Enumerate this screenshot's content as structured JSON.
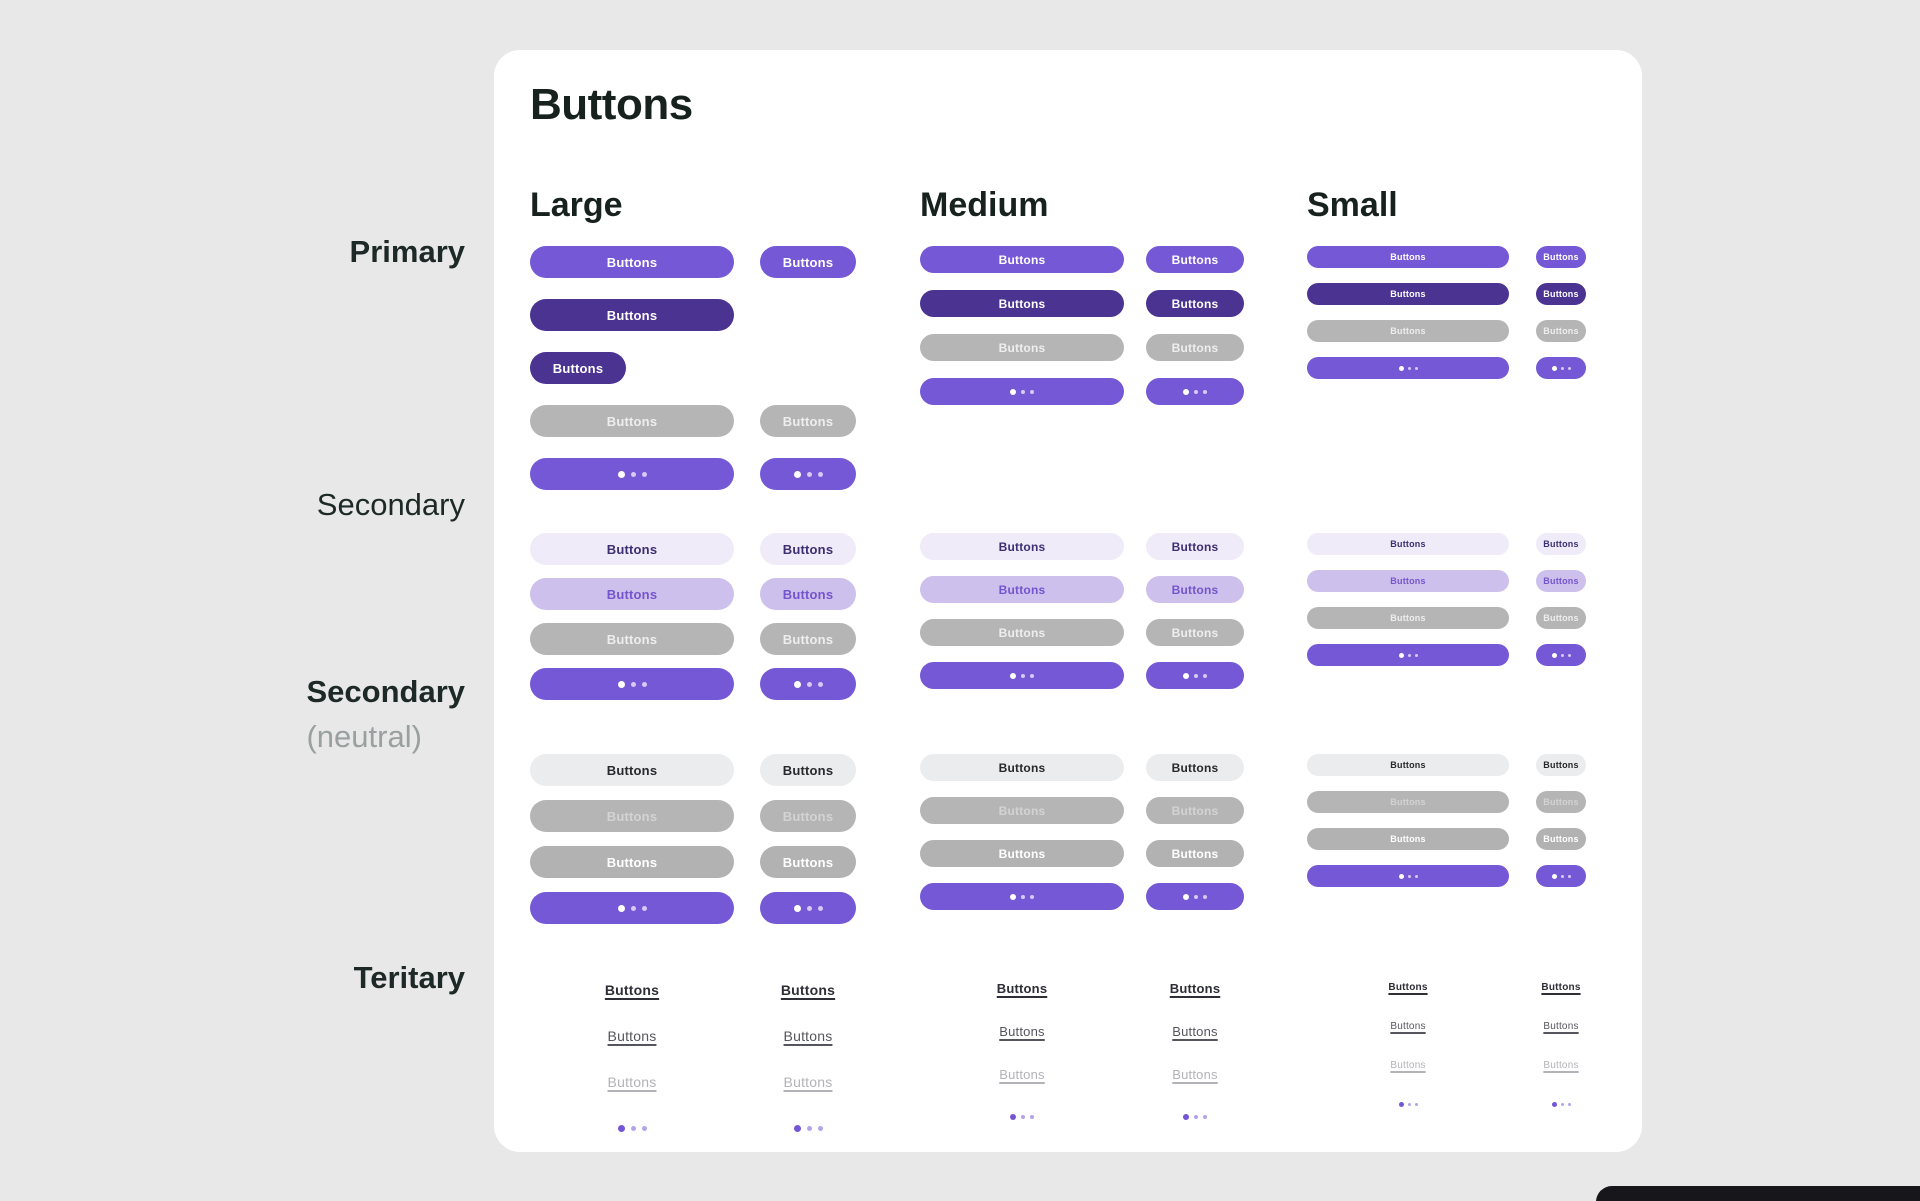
{
  "page": {
    "background": "#e8e8e8",
    "card_background": "#ffffff",
    "label_color": "#1d2926",
    "muted_label_color": "#9aa0a0",
    "edge_panel_color": "#17171b"
  },
  "title": "Buttons",
  "button_label": "Buttons",
  "size_columns": [
    {
      "id": "large",
      "heading": "Large"
    },
    {
      "id": "medium",
      "heading": "Medium"
    },
    {
      "id": "small",
      "heading": "Small"
    }
  ],
  "row_groups": [
    {
      "id": "primary",
      "label": "Primary",
      "sublabel": ""
    },
    {
      "id": "secondary",
      "label": "Secondary",
      "sublabel": ""
    },
    {
      "id": "secondary_neutral",
      "label": "Secondary",
      "sublabel": "(neutral)"
    },
    {
      "id": "tertiary",
      "label": "Teritary",
      "sublabel": ""
    }
  ],
  "variants": {
    "primary": {
      "bg": "#7558d6",
      "fg": "#ffffff"
    },
    "primary_active": {
      "bg": "#4b3392",
      "fg": "#ffffff"
    },
    "disabled": {
      "bg": "#b5b5b5",
      "fg": "#eeeeee"
    },
    "loading": {
      "bg": "#7558d6",
      "dots": [
        "#ffffff",
        "#d5caf4",
        "#d5caf4"
      ]
    },
    "secondary": {
      "bg": "#efebf8",
      "fg": "#3d2f73"
    },
    "secondary_pressed": {
      "bg": "#cec0ed",
      "fg": "#7355cd"
    },
    "neutral": {
      "bg": "#ebecee",
      "fg": "#28282d",
      "textured": true
    },
    "neutral_disabled": {
      "bg": "#b5b5b5",
      "fg": "#d3d3d3"
    },
    "neutral_hover": {
      "bg": "#b2b2b2",
      "fg": "#ffffff"
    },
    "tertiary": {
      "fg": "#2e2e36",
      "link": true,
      "underline": true,
      "weight": 700
    },
    "tertiary_hover": {
      "fg": "#55555e",
      "link": true,
      "underline": true,
      "weight": 500
    },
    "tertiary_disabled": {
      "fg": "#b2b2b8",
      "link": true,
      "underline": true,
      "weight": 500
    },
    "tertiary_loading": {
      "link": true,
      "dots": [
        "#7456d4",
        "#b3a3ea",
        "#b3a3ea"
      ]
    }
  },
  "matrix": {
    "primary": {
      "large": [
        {
          "wide": "primary",
          "narrow": "primary"
        },
        {
          "wide": "primary_active",
          "narrow": null
        },
        {
          "wide": "primary_active",
          "narrow": null,
          "compact": true
        },
        {
          "wide": "disabled",
          "narrow": "disabled"
        },
        {
          "wide": "loading",
          "narrow": "loading"
        }
      ],
      "medium": [
        {
          "wide": "primary",
          "narrow": "primary"
        },
        {
          "wide": "primary_active",
          "narrow": "primary_active"
        },
        {
          "wide": "disabled",
          "narrow": "disabled"
        },
        {
          "wide": "loading",
          "narrow": "loading"
        }
      ],
      "small": [
        {
          "wide": "primary",
          "narrow": "primary"
        },
        {
          "wide": "primary_active",
          "narrow": "primary_active"
        },
        {
          "wide": "disabled",
          "narrow": "disabled"
        },
        {
          "wide": "loading",
          "narrow": "loading"
        }
      ]
    },
    "secondary": {
      "large": [
        {
          "wide": "secondary",
          "narrow": "secondary"
        },
        {
          "wide": "secondary_pressed",
          "narrow": "secondary_pressed"
        },
        {
          "wide": "disabled",
          "narrow": "disabled"
        },
        {
          "wide": "loading",
          "narrow": "loading"
        }
      ],
      "medium": [
        {
          "wide": "secondary",
          "narrow": "secondary"
        },
        {
          "wide": "secondary_pressed",
          "narrow": "secondary_pressed"
        },
        {
          "wide": "disabled",
          "narrow": "disabled"
        },
        {
          "wide": "loading",
          "narrow": "loading"
        }
      ],
      "small": [
        {
          "wide": "secondary",
          "narrow": "secondary"
        },
        {
          "wide": "secondary_pressed",
          "narrow": "secondary_pressed"
        },
        {
          "wide": "disabled",
          "narrow": "disabled"
        },
        {
          "wide": "loading",
          "narrow": "loading"
        }
      ]
    },
    "secondary_neutral": {
      "large": [
        {
          "wide": "neutral",
          "narrow": "neutral"
        },
        {
          "wide": "neutral_disabled",
          "narrow": "neutral_disabled"
        },
        {
          "wide": "neutral_hover",
          "narrow": "neutral_hover"
        },
        {
          "wide": "loading",
          "narrow": "loading"
        }
      ],
      "medium": [
        {
          "wide": "neutral",
          "narrow": "neutral"
        },
        {
          "wide": "neutral_disabled",
          "narrow": "neutral_disabled"
        },
        {
          "wide": "neutral_hover",
          "narrow": "neutral_hover"
        },
        {
          "wide": "loading",
          "narrow": "loading"
        }
      ],
      "small": [
        {
          "wide": "neutral",
          "narrow": "neutral"
        },
        {
          "wide": "neutral_disabled",
          "narrow": "neutral_disabled"
        },
        {
          "wide": "neutral_hover",
          "narrow": "neutral_hover"
        },
        {
          "wide": "loading",
          "narrow": "loading"
        }
      ]
    },
    "tertiary": {
      "large": [
        {
          "wide": "tertiary",
          "narrow": "tertiary"
        },
        {
          "wide": "tertiary_hover",
          "narrow": "tertiary_hover"
        },
        {
          "wide": "tertiary_disabled",
          "narrow": "tertiary_disabled"
        },
        {
          "wide": "tertiary_loading",
          "narrow": "tertiary_loading"
        }
      ],
      "medium": [
        {
          "wide": "tertiary",
          "narrow": "tertiary"
        },
        {
          "wide": "tertiary_hover",
          "narrow": "tertiary_hover"
        },
        {
          "wide": "tertiary_disabled",
          "narrow": "tertiary_disabled"
        },
        {
          "wide": "tertiary_loading",
          "narrow": "tertiary_loading"
        }
      ],
      "small": [
        {
          "wide": "tertiary",
          "narrow": "tertiary"
        },
        {
          "wide": "tertiary_hover",
          "narrow": "tertiary_hover"
        },
        {
          "wide": "tertiary_disabled",
          "narrow": "tertiary_disabled"
        },
        {
          "wide": "tertiary_loading",
          "narrow": "tertiary_loading"
        }
      ]
    }
  }
}
